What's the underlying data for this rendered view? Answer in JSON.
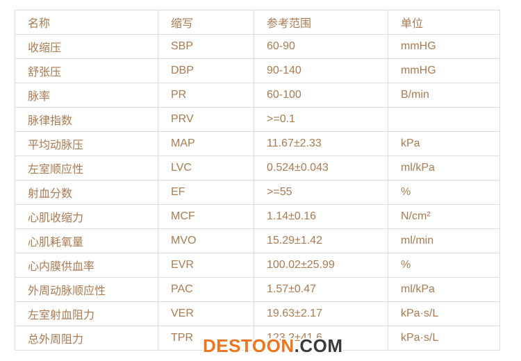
{
  "table": {
    "headers": [
      "名称",
      "缩写",
      "参考范围",
      "单位"
    ],
    "rows": [
      [
        "收缩压",
        "SBP",
        "60-90",
        "mmHG"
      ],
      [
        "舒张压",
        "DBP",
        "90-140",
        "mmHG"
      ],
      [
        "脉率",
        "PR",
        "60-100",
        "B/min"
      ],
      [
        "脉律指数",
        "PRV",
        ">=0.1",
        ""
      ],
      [
        "平均动脉压",
        "MAP",
        "11.67±2.33",
        "kPa"
      ],
      [
        "左室顺应性",
        "LVC",
        "0.524±0.043",
        "ml/kPa"
      ],
      [
        "射血分数",
        "EF",
        ">=55",
        "%"
      ],
      [
        "心肌收缩力",
        "MCF",
        "1.14±0.16",
        "N/cm²"
      ],
      [
        "心肌耗氧量",
        "MVO",
        "15.29±1.42",
        "ml/min"
      ],
      [
        "心内膜供血率",
        "EVR",
        "100.02±25.99",
        "%"
      ],
      [
        "外周动脉顺应性",
        "PAC",
        "1.57±0.47",
        "ml/kPa"
      ],
      [
        "左室射血阻力",
        "VER",
        "19.63±2.17",
        "kPa·s/L"
      ],
      [
        "总外周阻力",
        "TPR",
        "123.2±41.6",
        "kPa·s/L"
      ]
    ]
  },
  "watermark": {
    "brand": "DESTOON",
    "tld": ".COM"
  },
  "colors": {
    "cell_text": "#ab7a50",
    "border": "#dcdcdc",
    "watermark_brand": "#f0731d",
    "watermark_tld": "#3a3a3a",
    "background": "#ffffff"
  }
}
